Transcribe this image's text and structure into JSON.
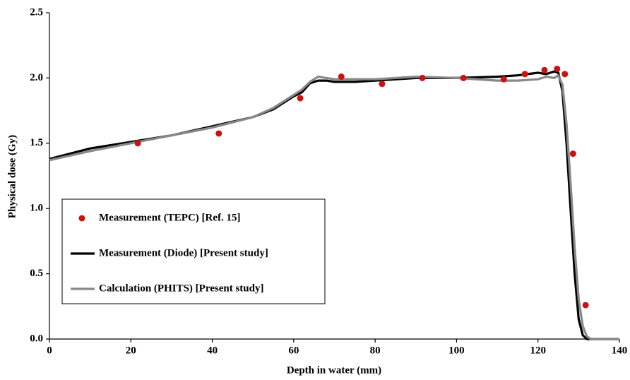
{
  "chart_data": {
    "type": "line",
    "xlabel": "Depth in water (mm)",
    "ylabel": "Physical dose (Gy)",
    "xlim": [
      0,
      140
    ],
    "ylim": [
      0,
      2.5
    ],
    "xticks": [
      0,
      20,
      40,
      60,
      80,
      100,
      120,
      140
    ],
    "yticks": [
      {
        "value": 0,
        "label": "0.0"
      },
      {
        "value": 0.5,
        "label": "0.5"
      },
      {
        "value": 1,
        "label": "1.0"
      },
      {
        "value": 1.5,
        "label": "1.5"
      },
      {
        "value": 2,
        "label": "2.0"
      },
      {
        "value": 2.5,
        "label": "2.5"
      }
    ],
    "legend": "lower left",
    "series": [
      {
        "name": "Measurement (TEPC) [Ref. 15]",
        "kind": "scatter",
        "color": "#cc1111",
        "x": [
          21.7,
          41.6,
          61.6,
          71.7,
          81.7,
          91.6,
          101.7,
          111.6,
          116.8,
          121.6,
          124.7,
          126.6,
          128.6,
          131.7
        ],
        "values": [
          1.5,
          1.575,
          1.845,
          2.01,
          1.955,
          2.0,
          2.0,
          1.99,
          2.03,
          2.06,
          2.07,
          2.03,
          1.42,
          0.26
        ]
      },
      {
        "name": "Measurement (Diode) [Present study]",
        "kind": "line",
        "color": "#000000",
        "x": [
          0,
          10,
          20,
          30,
          40,
          50,
          55,
          60,
          62,
          64,
          66,
          68,
          70,
          75,
          80,
          90,
          100,
          110,
          115,
          120,
          122,
          124,
          125,
          126,
          127,
          128,
          129,
          130,
          131,
          132,
          140
        ],
        "values": [
          1.38,
          1.46,
          1.51,
          1.56,
          1.63,
          1.7,
          1.76,
          1.86,
          1.89,
          1.96,
          1.98,
          1.98,
          1.97,
          1.97,
          1.98,
          2.0,
          2.0,
          2.01,
          2.02,
          2.04,
          2.03,
          2.05,
          2.04,
          1.9,
          1.5,
          1.0,
          0.5,
          0.15,
          0.03,
          0.0,
          0.0
        ]
      },
      {
        "name": "Calculation (PHITS) [Present study]",
        "kind": "line",
        "color": "#888888",
        "x": [
          0,
          10,
          20,
          30,
          40,
          50,
          55,
          60,
          62,
          64,
          66,
          68,
          70,
          75,
          80,
          90,
          100,
          110,
          115,
          120,
          122,
          124,
          125,
          126,
          127,
          128,
          129,
          130,
          131,
          132,
          133,
          140
        ],
        "values": [
          1.37,
          1.44,
          1.5,
          1.56,
          1.62,
          1.7,
          1.77,
          1.87,
          1.91,
          1.97,
          2.01,
          2.0,
          1.99,
          1.99,
          1.99,
          2.01,
          2.0,
          1.98,
          1.98,
          1.99,
          2.01,
          2.0,
          2.02,
          1.95,
          1.65,
          1.2,
          0.7,
          0.3,
          0.1,
          0.02,
          0.0,
          0.0
        ]
      }
    ]
  }
}
